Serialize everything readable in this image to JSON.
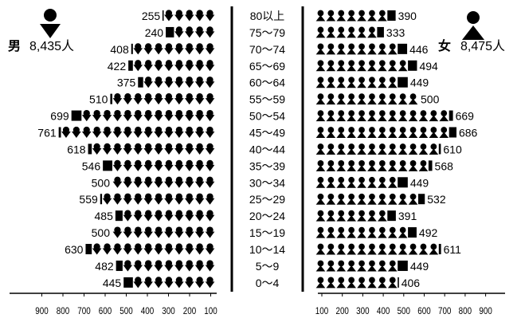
{
  "chart_data": {
    "type": "bar",
    "subtype": "population-pyramid-pictogram",
    "title": "",
    "xlabel": "",
    "ylabel": "",
    "male": {
      "label": "男",
      "total": "8,435人",
      "icon": "male-person-icon"
    },
    "female": {
      "label": "女",
      "total": "8,475人",
      "icon": "female-person-icon"
    },
    "categories": [
      "80以上",
      "75～79",
      "70～74",
      "65～69",
      "60～64",
      "55～59",
      "50～54",
      "45～49",
      "40～44",
      "35～39",
      "30～34",
      "25～29",
      "20～24",
      "15～19",
      "10～14",
      "5～9",
      "0～4"
    ],
    "series": [
      {
        "name": "男",
        "values": [
          255,
          240,
          408,
          422,
          375,
          510,
          699,
          761,
          618,
          546,
          500,
          559,
          485,
          500,
          630,
          482,
          445
        ]
      },
      {
        "name": "女",
        "values": [
          390,
          333,
          446,
          494,
          449,
          500,
          669,
          686,
          610,
          568,
          449,
          532,
          391,
          492,
          611,
          449,
          406
        ]
      }
    ],
    "xlim": [
      0,
      900
    ],
    "axis_ticks_left": [
      "900",
      "800",
      "700",
      "600",
      "500",
      "400",
      "300",
      "200",
      "100"
    ],
    "axis_ticks_right": [
      "100",
      "200",
      "300",
      "400",
      "500",
      "600",
      "700",
      "800",
      "900"
    ],
    "icon_unit": 50,
    "colors": {
      "icon": "#000000",
      "background": "#ffffff"
    },
    "grid": false
  }
}
